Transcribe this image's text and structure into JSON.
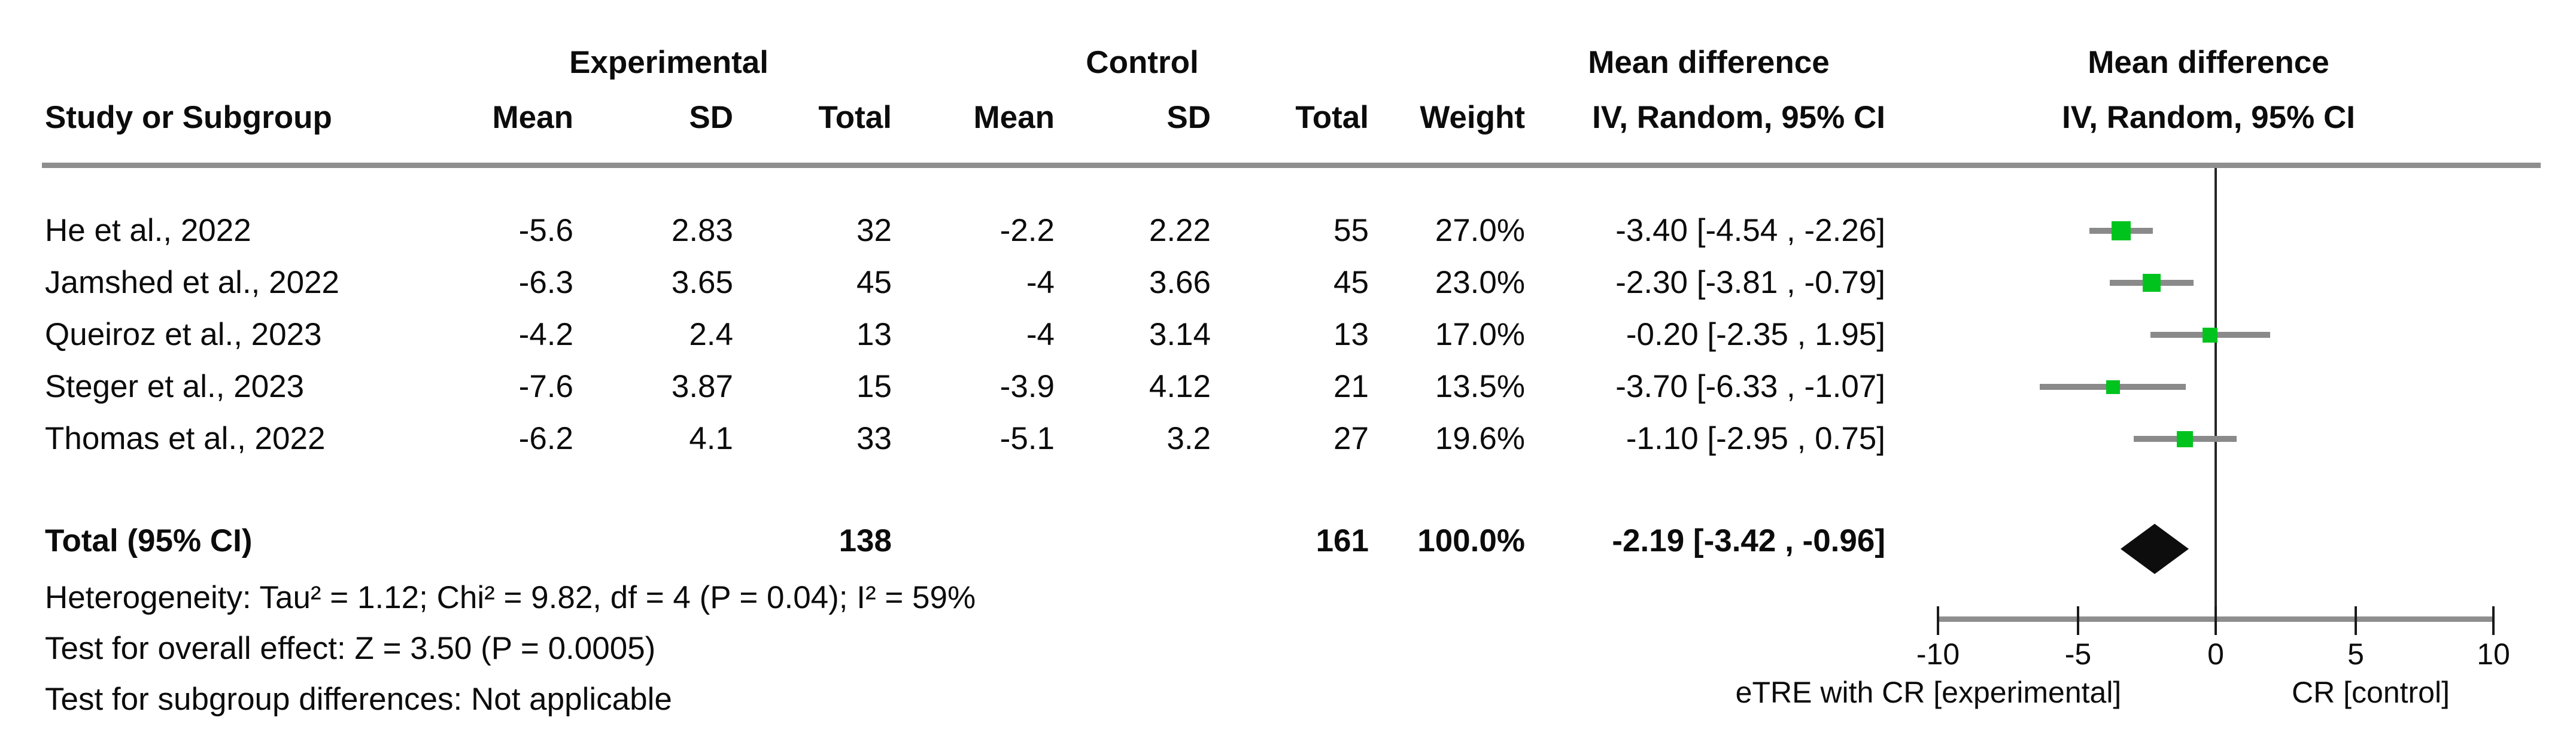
{
  "header": {
    "group_experimental": "Experimental",
    "group_control": "Control",
    "md_text_col": "Mean difference",
    "md_plot_col": "Mean difference",
    "study": "Study or Subgroup",
    "exp_mean": "Mean",
    "exp_sd": "SD",
    "exp_total": "Total",
    "ctrl_mean": "Mean",
    "ctrl_sd": "SD",
    "ctrl_total": "Total",
    "weight": "Weight",
    "ci_text_col": "IV, Random, 95% CI",
    "ci_plot_col": "IV, Random, 95% CI"
  },
  "rows": [
    {
      "study": "He et al., 2022",
      "exp_mean": "-5.6",
      "exp_sd": "2.83",
      "exp_total": "32",
      "ctrl_mean": "-2.2",
      "ctrl_sd": "2.22",
      "ctrl_total": "55",
      "weight": "27.0%",
      "ci": "-3.40 [-4.54 , -2.26]"
    },
    {
      "study": "Jamshed et al., 2022",
      "exp_mean": "-6.3",
      "exp_sd": "3.65",
      "exp_total": "45",
      "ctrl_mean": "-4",
      "ctrl_sd": "3.66",
      "ctrl_total": "45",
      "weight": "23.0%",
      "ci": "-2.30 [-3.81 , -0.79]"
    },
    {
      "study": "Queiroz et al., 2023",
      "exp_mean": "-4.2",
      "exp_sd": "2.4",
      "exp_total": "13",
      "ctrl_mean": "-4",
      "ctrl_sd": "3.14",
      "ctrl_total": "13",
      "weight": "17.0%",
      "ci": "-0.20 [-2.35 , 1.95]"
    },
    {
      "study": "Steger et al., 2023",
      "exp_mean": "-7.6",
      "exp_sd": "3.87",
      "exp_total": "15",
      "ctrl_mean": "-3.9",
      "ctrl_sd": "4.12",
      "ctrl_total": "21",
      "weight": "13.5%",
      "ci": "-3.70 [-6.33 , -1.07]"
    },
    {
      "study": "Thomas et al., 2022",
      "exp_mean": "-6.2",
      "exp_sd": "4.1",
      "exp_total": "33",
      "ctrl_mean": "-5.1",
      "ctrl_sd": "3.2",
      "ctrl_total": "27",
      "weight": "19.6%",
      "ci": "-1.10 [-2.95 , 0.75]"
    }
  ],
  "total_row": {
    "label": "Total (95% CI)",
    "exp_total": "138",
    "ctrl_total": "161",
    "weight": "100.0%",
    "ci": "-2.19 [-3.42 , -0.96]"
  },
  "footnotes": {
    "heterogeneity": "Heterogeneity: Tau² = 1.12; Chi² = 9.82, df = 4 (P = 0.04); I² = 59%",
    "overall_effect": "Test for overall effect: Z = 3.50 (P = 0.0005)",
    "subgroup_differences": "Test for subgroup differences: Not applicable"
  },
  "axis": {
    "ticks": [
      "-10",
      "-5",
      "0",
      "5",
      "10"
    ],
    "label_left": "eTRE with CR [experimental]",
    "label_right": "CR [control]"
  },
  "chart_data": {
    "type": "forest",
    "title": "Mean difference IV, Random, 95% CI",
    "studies": [
      "He et al., 2022",
      "Jamshed et al., 2022",
      "Queiroz et al., 2023",
      "Steger et al., 2023",
      "Thomas et al., 2022"
    ],
    "estimates": [
      -3.4,
      -2.3,
      -0.2,
      -3.7,
      -1.1
    ],
    "ci_low": [
      -4.54,
      -3.81,
      -2.35,
      -6.33,
      -2.95
    ],
    "ci_high": [
      -2.26,
      -0.79,
      1.95,
      -1.07,
      0.75
    ],
    "weights_pct": [
      27.0,
      23.0,
      17.0,
      13.5,
      19.6
    ],
    "total": {
      "estimate": -2.19,
      "ci_low": -3.42,
      "ci_high": -0.96
    },
    "xlim": [
      -10,
      10
    ],
    "xticks": [
      -10,
      -5,
      0,
      5,
      10
    ],
    "null_line_x": 0,
    "x_label_left": "eTRE with CR [experimental]",
    "x_label_right": "CR [control]",
    "marker_color": "#00c31d",
    "ci_line_color": "#8a8a8a",
    "diamond_color": "#0d0d0d"
  }
}
